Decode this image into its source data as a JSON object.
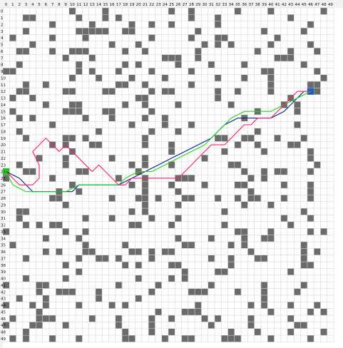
{
  "grid": {
    "cols": 50,
    "rows": 50,
    "col_labels": [
      "0",
      "1",
      "2",
      "3",
      "4",
      "5",
      "6",
      "7",
      "8",
      "9",
      "10",
      "11",
      "12",
      "13",
      "14",
      "15",
      "16",
      "17",
      "18",
      "19",
      "20",
      "21",
      "22",
      "23",
      "24",
      "25",
      "26",
      "27",
      "28",
      "29",
      "30",
      "31",
      "32",
      "33",
      "34",
      "35",
      "36",
      "37",
      "38",
      "39",
      "40",
      "41",
      "42",
      "43",
      "44",
      "45",
      "46",
      "47",
      "48",
      "49"
    ],
    "row_labels": [
      "0",
      "1",
      "2",
      "3",
      "4",
      "5",
      "6",
      "7",
      "8",
      "9",
      "10",
      "11",
      "12",
      "13",
      "14",
      "15",
      "16",
      "17",
      "18",
      "19",
      "20",
      "21",
      "22",
      "23",
      "24",
      "25",
      "26",
      "27",
      "28",
      "29",
      "30",
      "31",
      "32",
      "33",
      "34",
      "35",
      "36",
      "37",
      "38",
      "39",
      "40",
      "41",
      "42",
      "43",
      "44",
      "45",
      "46",
      "47",
      "48",
      "49"
    ],
    "obstacle_rows": [
      "..........#....#.........#..#......#....#.......#.",
      "...##......#...#.#..........#...#..........#.....",
      ".......#.....#.....#..#..#......#.............#..",
      "...#.......#####..##.........#.........#.....#...",
      ".#.....#....#.........#.....#...##.......#.......",
      "....#...........#...#.........#.#.#.....#.....#..",
      "..##...#..###.....#..#.......#........#....#...#.",
      ".........#...#..........###..#...........###.....",
      "..#........#......#.#.....#....#....#........#...",
      "##.........#.#...#....#.....#..........##......#.",
      "..........#...#....#....#.......#...#...#.......#",
      "...#..#..........##..#......#...........#.....##.",
      "..##.....##....##.....#.##......#..#....#.....##.",
      ".#..#...............##..........#..........#.....",
      "......#...##......#..#....#.......#.......#.#....",
      ".#.......###...##.....#...............#.....#....",
      "..#.#.......#...#....#..#...........#............",
      ".......#...........#....#...#...............#....",
      "..#...........#.......#...#...........#..........",
      "...#.....##.#........#..........##..##...#...#...",
      ".......#.#...##......#...#.........#..#....##....",
      "..........#..............#.......#.....#......#..",
      ".....#...#......#....#........#...............#..",
      "..#......#.........#.#...#........##...........#.",
      "...##......##.......#...............#..#.##...#..",
      "#......#.........#...#....###........#.#.........",
      "..........#........#.#...#....#....##.....#...#..",
      "........#..#.........#....#..........#........#..",
      ".......##.......#...##.#...##...#..#.##...#...#..",
      ".........#...........#....#.........#...#........",
      "..##...............#.#...........#...........#...",
      "..#.........#...#.....#...#...............#...#..",
      "...#.#.##..........##....#.......#.........#.....",
      "#........#..#......................##...#.....#.#",
      "......#....#..............#....#....#..##........",
      ".#..........#.....#........##.....#.#........#...",
      "......#.#...##.....##.#.##...........#.......#.#.",
      "...#.......#..##.#....#........#..#...##.....#...",
      ".........#........#.#....##.......#..........##..",
      "...........#...............#....##.........#.....",
      "...#.....#..........#....#.#....................",
      "#....##..........#.....#.......#.......#.....#...",
      ".....#..###...#.......#.....###....#...#....#...",
      "..#...#.......#.....#..................#........",
      "#...#.#....#....#.#..........#.......#.#...#...#.",
      ".....#.................#...###..........#.....#.#",
      ".#...###.....#...#....#..#....#.#....#.....#.....",
      "#...##...#.......#....#........#.....#......##..",
      "...#..............#...#..#........#...#....#....#",
      ".#.#...#...#......##....#..##....###....#.....#.."
    ]
  },
  "paths": [
    {
      "name": "",
      "color": "#0b1f8f",
      "cells": [
        [
          0,
          24
        ],
        [
          2,
          25
        ],
        [
          4,
          27
        ],
        [
          6,
          27
        ],
        [
          8,
          27
        ],
        [
          10,
          27
        ],
        [
          11,
          26
        ],
        [
          13,
          26
        ],
        [
          15,
          26
        ],
        [
          17,
          26
        ],
        [
          19,
          25
        ],
        [
          21,
          24
        ],
        [
          23,
          23
        ],
        [
          25,
          22
        ],
        [
          27,
          21
        ],
        [
          29,
          20
        ],
        [
          31,
          19
        ],
        [
          33,
          17
        ],
        [
          35,
          16
        ],
        [
          37,
          16
        ],
        [
          39,
          16
        ],
        [
          40,
          16
        ],
        [
          42,
          15
        ],
        [
          43,
          14
        ],
        [
          44,
          13
        ],
        [
          45,
          12
        ],
        [
          46,
          12
        ]
      ]
    },
    {
      "name": "",
      "color": "#1fd41f",
      "cells": [
        [
          0,
          24
        ],
        [
          1,
          26
        ],
        [
          3,
          27
        ],
        [
          5,
          27
        ],
        [
          7,
          27
        ],
        [
          9,
          27
        ],
        [
          11,
          26
        ],
        [
          13,
          26
        ],
        [
          15,
          26
        ],
        [
          17,
          26
        ],
        [
          18,
          25
        ],
        [
          20,
          24
        ],
        [
          22,
          24
        ],
        [
          24,
          23
        ],
        [
          26,
          22
        ],
        [
          28,
          21
        ],
        [
          30,
          20
        ],
        [
          32,
          18
        ],
        [
          34,
          16
        ],
        [
          36,
          15
        ],
        [
          38,
          15
        ],
        [
          40,
          15
        ],
        [
          42,
          14
        ],
        [
          44,
          13
        ],
        [
          46,
          12
        ]
      ]
    },
    {
      "name": "",
      "color": "#ff1a6e",
      "cells": [
        [
          0,
          24
        ],
        [
          1,
          25
        ],
        [
          2,
          26
        ],
        [
          3,
          26
        ],
        [
          4,
          26
        ],
        [
          5,
          25
        ],
        [
          5,
          23
        ],
        [
          4,
          21
        ],
        [
          5,
          20
        ],
        [
          6,
          19
        ],
        [
          7,
          20
        ],
        [
          8,
          21
        ],
        [
          9,
          20
        ],
        [
          10,
          21
        ],
        [
          11,
          22
        ],
        [
          12,
          23
        ],
        [
          13,
          24
        ],
        [
          14,
          23
        ],
        [
          15,
          24
        ],
        [
          16,
          25
        ],
        [
          17,
          26
        ],
        [
          18,
          26
        ],
        [
          19,
          25
        ],
        [
          20,
          25
        ],
        [
          21,
          25
        ],
        [
          22,
          25
        ],
        [
          23,
          25
        ],
        [
          24,
          25
        ],
        [
          25,
          25
        ],
        [
          26,
          25
        ],
        [
          27,
          24
        ],
        [
          28,
          23
        ],
        [
          29,
          22
        ],
        [
          30,
          21
        ],
        [
          31,
          20
        ],
        [
          32,
          20
        ],
        [
          33,
          20
        ],
        [
          34,
          19
        ],
        [
          35,
          18
        ],
        [
          36,
          17
        ],
        [
          37,
          17
        ],
        [
          38,
          16
        ],
        [
          39,
          16
        ],
        [
          40,
          16
        ],
        [
          41,
          15
        ],
        [
          42,
          14
        ],
        [
          43,
          13
        ],
        [
          44,
          12
        ],
        [
          45,
          12
        ],
        [
          46,
          12
        ]
      ]
    }
  ],
  "start": {
    "col": 0,
    "row": 24,
    "color": "#00b800"
  },
  "goal": {
    "col": 46,
    "row": 12,
    "color": "#1565c0"
  },
  "colors": {
    "obstacle": "#6b6b6b",
    "grid_line": "#d6d6d6",
    "label_band": "#f2f2f2"
  }
}
